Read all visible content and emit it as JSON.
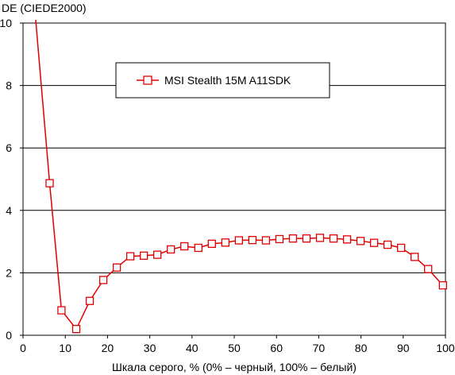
{
  "chart_data": {
    "type": "line",
    "ylabel": "DE (CIEDE2000)",
    "xlabel": "Шкала серого, % (0% – черный, 100% – белый)",
    "xlim": [
      0,
      100
    ],
    "ylim": [
      0,
      10
    ],
    "x_ticks": [
      "0",
      "10",
      "20",
      "30",
      "40",
      "50",
      "60",
      "70",
      "80",
      "90",
      "100"
    ],
    "y_ticks": [
      "0",
      "2",
      "4",
      "6",
      "8",
      "10"
    ],
    "grid": "horizontal",
    "legend_position": "top-center",
    "series": [
      {
        "name": "MSI Stealth 15M A11SDK",
        "color": "#e00000",
        "line_start": [
          3,
          10.1
        ],
        "x": [
          6.3,
          9.1,
          12.6,
          15.8,
          19.0,
          22.2,
          25.4,
          28.6,
          31.8,
          35.0,
          38.2,
          41.5,
          44.7,
          47.9,
          51.1,
          54.3,
          57.5,
          60.7,
          63.9,
          67.1,
          70.3,
          73.5,
          76.7,
          79.9,
          83.1,
          86.3,
          89.5,
          92.7,
          95.9,
          99.4
        ],
        "y": [
          4.87,
          0.8,
          0.2,
          1.1,
          1.77,
          2.17,
          2.53,
          2.55,
          2.58,
          2.75,
          2.85,
          2.8,
          2.93,
          2.97,
          3.04,
          3.05,
          3.04,
          3.08,
          3.1,
          3.1,
          3.12,
          3.1,
          3.07,
          3.02,
          2.96,
          2.9,
          2.8,
          2.51,
          2.12,
          1.6
        ]
      }
    ]
  }
}
